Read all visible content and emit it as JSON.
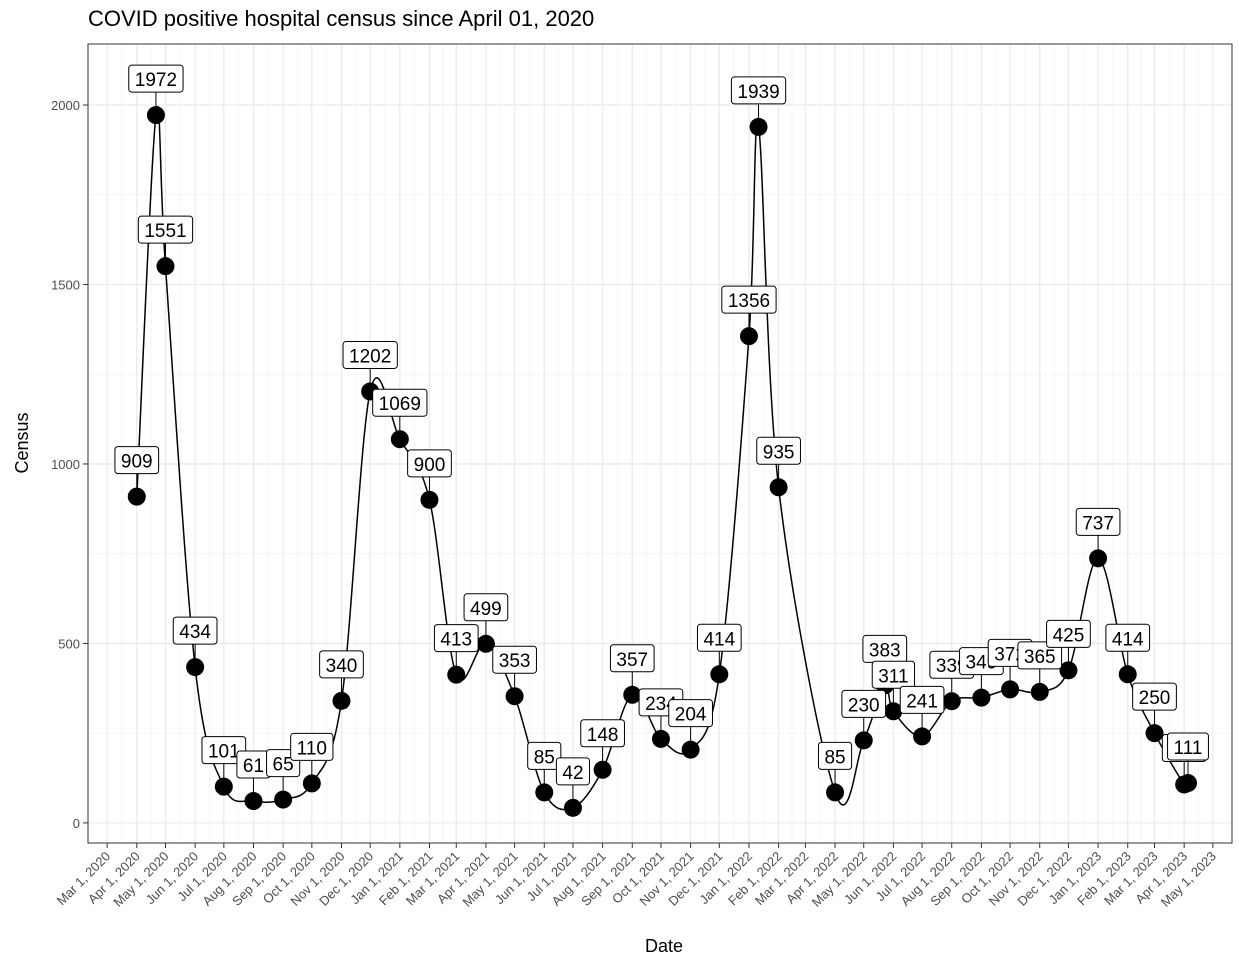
{
  "chart_data": {
    "type": "line",
    "title": "COVID positive hospital census since April 01, 2020",
    "x_label": "Date",
    "y_label": "Census",
    "x": [
      "2020-04-01",
      "2020-04-21",
      "2020-05-01",
      "2020-06-01",
      "2020-07-01",
      "2020-08-01",
      "2020-09-01",
      "2020-10-01",
      "2020-11-01",
      "2020-12-01",
      "2021-01-01",
      "2021-02-01",
      "2021-03-01",
      "2021-04-01",
      "2021-05-01",
      "2021-06-01",
      "2021-07-01",
      "2021-08-01",
      "2021-09-01",
      "2021-10-01",
      "2021-11-01",
      "2021-12-01",
      "2022-01-01",
      "2022-01-11",
      "2022-02-01",
      "2022-04-01",
      "2022-05-01",
      "2022-05-23",
      "2022-06-01",
      "2022-07-01",
      "2022-08-01",
      "2022-09-01",
      "2022-10-01",
      "2022-11-01",
      "2022-12-01",
      "2023-01-01",
      "2023-02-01",
      "2023-03-01",
      "2023-04-01",
      "2023-04-05"
    ],
    "series": [
      {
        "name": "Census",
        "color": "#000000",
        "values": [
          909,
          1972,
          1551,
          434,
          101,
          61,
          65,
          110,
          340,
          1202,
          1069,
          900,
          413,
          499,
          353,
          85,
          42,
          148,
          357,
          234,
          204,
          414,
          1356,
          1939,
          935,
          85,
          230,
          383,
          311,
          241,
          339,
          349,
          372,
          365,
          425,
          737,
          414,
          250,
          107,
          111
        ]
      }
    ],
    "xlim": [
      "2020-02-10",
      "2023-05-21"
    ],
    "xticks": [
      {
        "value": "2020-03-01",
        "label": "Mar 1, 2020"
      },
      {
        "value": "2020-04-01",
        "label": "Apr 1, 2020"
      },
      {
        "value": "2020-05-01",
        "label": "May 1, 2020"
      },
      {
        "value": "2020-06-01",
        "label": "Jun 1, 2020"
      },
      {
        "value": "2020-07-01",
        "label": "Jul 1, 2020"
      },
      {
        "value": "2020-08-01",
        "label": "Aug 1, 2020"
      },
      {
        "value": "2020-09-01",
        "label": "Sep 1, 2020"
      },
      {
        "value": "2020-10-01",
        "label": "Oct 1, 2020"
      },
      {
        "value": "2020-11-01",
        "label": "Nov 1, 2020"
      },
      {
        "value": "2020-12-01",
        "label": "Dec 1, 2020"
      },
      {
        "value": "2021-01-01",
        "label": "Jan 1, 2021"
      },
      {
        "value": "2021-02-01",
        "label": "Feb 1, 2021"
      },
      {
        "value": "2021-03-01",
        "label": "Mar 1, 2021"
      },
      {
        "value": "2021-04-01",
        "label": "Apr 1, 2021"
      },
      {
        "value": "2021-05-01",
        "label": "May 1, 2021"
      },
      {
        "value": "2021-06-01",
        "label": "Jun 1, 2021"
      },
      {
        "value": "2021-07-01",
        "label": "Jul 1, 2021"
      },
      {
        "value": "2021-08-01",
        "label": "Aug 1, 2021"
      },
      {
        "value": "2021-09-01",
        "label": "Sep 1, 2021"
      },
      {
        "value": "2021-10-01",
        "label": "Oct 1, 2021"
      },
      {
        "value": "2021-11-01",
        "label": "Nov 1, 2021"
      },
      {
        "value": "2021-12-01",
        "label": "Dec 1, 2021"
      },
      {
        "value": "2022-01-01",
        "label": "Jan 1, 2022"
      },
      {
        "value": "2022-02-01",
        "label": "Feb 1, 2022"
      },
      {
        "value": "2022-03-01",
        "label": "Mar 1, 2022"
      },
      {
        "value": "2022-04-01",
        "label": "Apr 1, 2022"
      },
      {
        "value": "2022-05-01",
        "label": "May 1, 2022"
      },
      {
        "value": "2022-06-01",
        "label": "Jun 1, 2022"
      },
      {
        "value": "2022-07-01",
        "label": "Jul 1, 2022"
      },
      {
        "value": "2022-08-01",
        "label": "Aug 1, 2022"
      },
      {
        "value": "2022-09-01",
        "label": "Sep 1, 2022"
      },
      {
        "value": "2022-10-01",
        "label": "Oct 1, 2022"
      },
      {
        "value": "2022-11-01",
        "label": "Nov 1, 2022"
      },
      {
        "value": "2022-12-01",
        "label": "Dec 1, 2022"
      },
      {
        "value": "2023-01-01",
        "label": "Jan 1, 2023"
      },
      {
        "value": "2023-02-01",
        "label": "Feb 1, 2023"
      },
      {
        "value": "2023-03-01",
        "label": "Mar 1, 2023"
      },
      {
        "value": "2023-04-01",
        "label": "Apr 1, 2023"
      },
      {
        "value": "2023-05-01",
        "label": "May 1, 2023"
      }
    ],
    "ylim": [
      -56,
      2170
    ],
    "yticks": [
      0,
      500,
      1000,
      1500,
      2000
    ],
    "grid": true
  }
}
